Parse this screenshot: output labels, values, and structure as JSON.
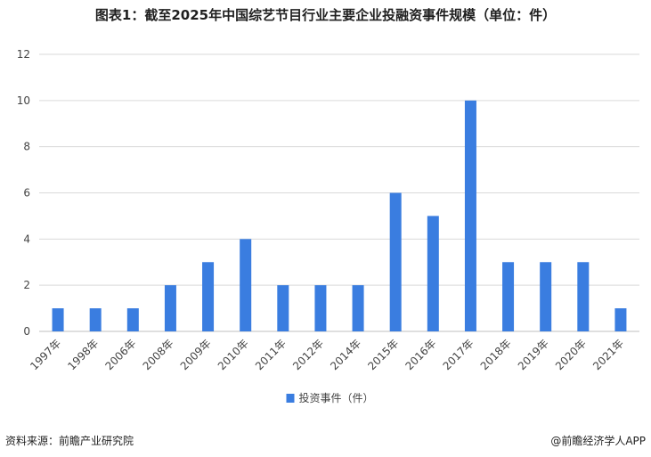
{
  "title": "图表1：截至2025年中国综艺节目行业主要企业投融资事件规模（单位：件）",
  "footer": {
    "source": "资料来源：前瞻产业研究院",
    "brand": "@前瞻经济学人APP"
  },
  "chart_data": {
    "type": "bar",
    "categories": [
      "1997年",
      "1998年",
      "2006年",
      "2008年",
      "2009年",
      "2010年",
      "2011年",
      "2012年",
      "2014年",
      "2015年",
      "2016年",
      "2017年",
      "2018年",
      "2019年",
      "2020年",
      "2021年"
    ],
    "series": [
      {
        "name": "投资事件（件）",
        "values": [
          1,
          1,
          1,
          2,
          3,
          4,
          2,
          2,
          2,
          6,
          5,
          10,
          3,
          3,
          3,
          1
        ]
      }
    ],
    "ylim": [
      0,
      12
    ],
    "yticks": [
      0,
      2,
      4,
      6,
      8,
      10,
      12
    ],
    "grid": true,
    "legend": "bottom-center",
    "colors": {
      "bar": "#3a7de0",
      "grid": "#d9d9d9",
      "axis": "#bfbfbf"
    }
  }
}
